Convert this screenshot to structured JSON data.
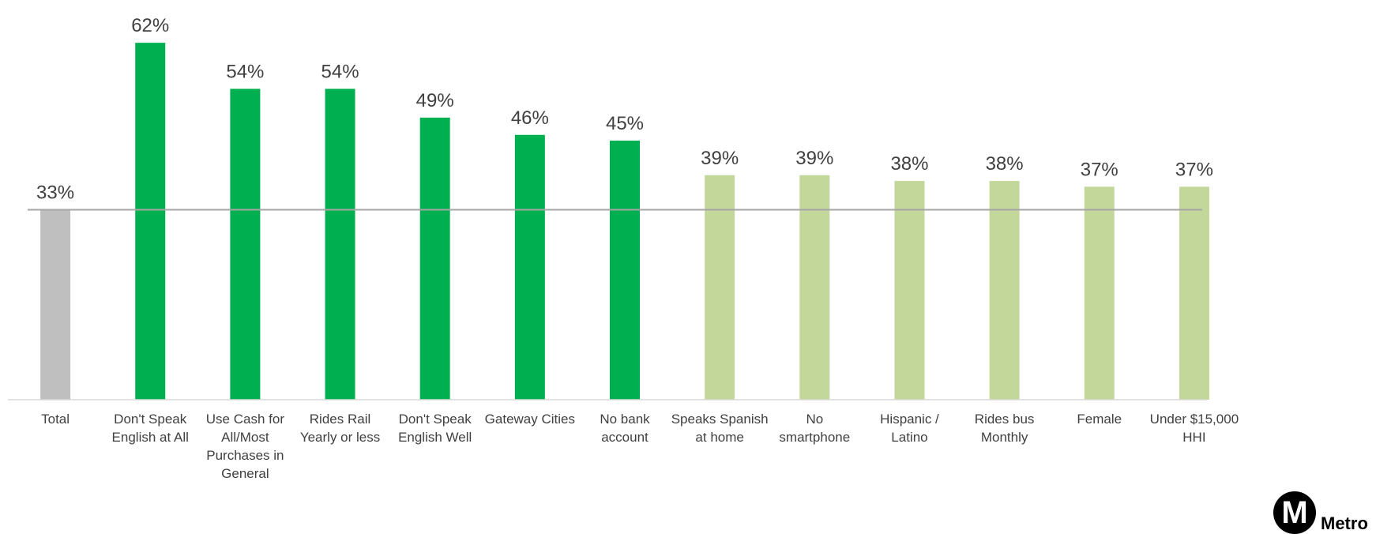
{
  "chart_data": {
    "type": "bar",
    "categories": [
      "Total",
      "Don't Speak English at All",
      "Use Cash for All/Most Purchases in General",
      "Rides Rail Yearly or less",
      "Don't Speak English Well",
      "Gateway Cities",
      "No bank account",
      "Speaks Spanish at home",
      "No smartphone",
      "Hispanic / Latino",
      "Rides bus Monthly",
      "Female",
      "Under $15,000 HHI"
    ],
    "category_lines": [
      [
        "Total"
      ],
      [
        "Don't Speak",
        "English at All"
      ],
      [
        "Use Cash for",
        "All/Most",
        "Purchases in",
        "General"
      ],
      [
        "Rides Rail",
        "Yearly or less"
      ],
      [
        "Don't Speak",
        "English Well"
      ],
      [
        "Gateway Cities"
      ],
      [
        "No bank",
        "account"
      ],
      [
        "Speaks Spanish",
        "at home"
      ],
      [
        "No",
        "smartphone"
      ],
      [
        "Hispanic /",
        "Latino"
      ],
      [
        "Rides bus",
        "Monthly"
      ],
      [
        "Female"
      ],
      [
        "Under $15,000",
        "HHI"
      ]
    ],
    "values": [
      33,
      62,
      54,
      54,
      49,
      46,
      45,
      39,
      39,
      38,
      38,
      37,
      37
    ],
    "data_labels": [
      "33%",
      "62%",
      "54%",
      "54%",
      "49%",
      "46%",
      "45%",
      "39%",
      "39%",
      "38%",
      "38%",
      "37%",
      "37%"
    ],
    "bar_colors": [
      "#bfbfbf",
      "#00b050",
      "#00b050",
      "#00b050",
      "#00b050",
      "#00b050",
      "#00b050",
      "#c4d79b",
      "#c4d79b",
      "#c4d79b",
      "#c4d79b",
      "#c4d79b",
      "#c4d79b"
    ],
    "reference_line": 33,
    "reference_line_color": "#a6a6a6",
    "ylim": [
      0,
      66
    ],
    "grid": false,
    "title": "",
    "xlabel": "",
    "ylabel": ""
  },
  "logo": {
    "letter": "M",
    "word": "Metro"
  }
}
